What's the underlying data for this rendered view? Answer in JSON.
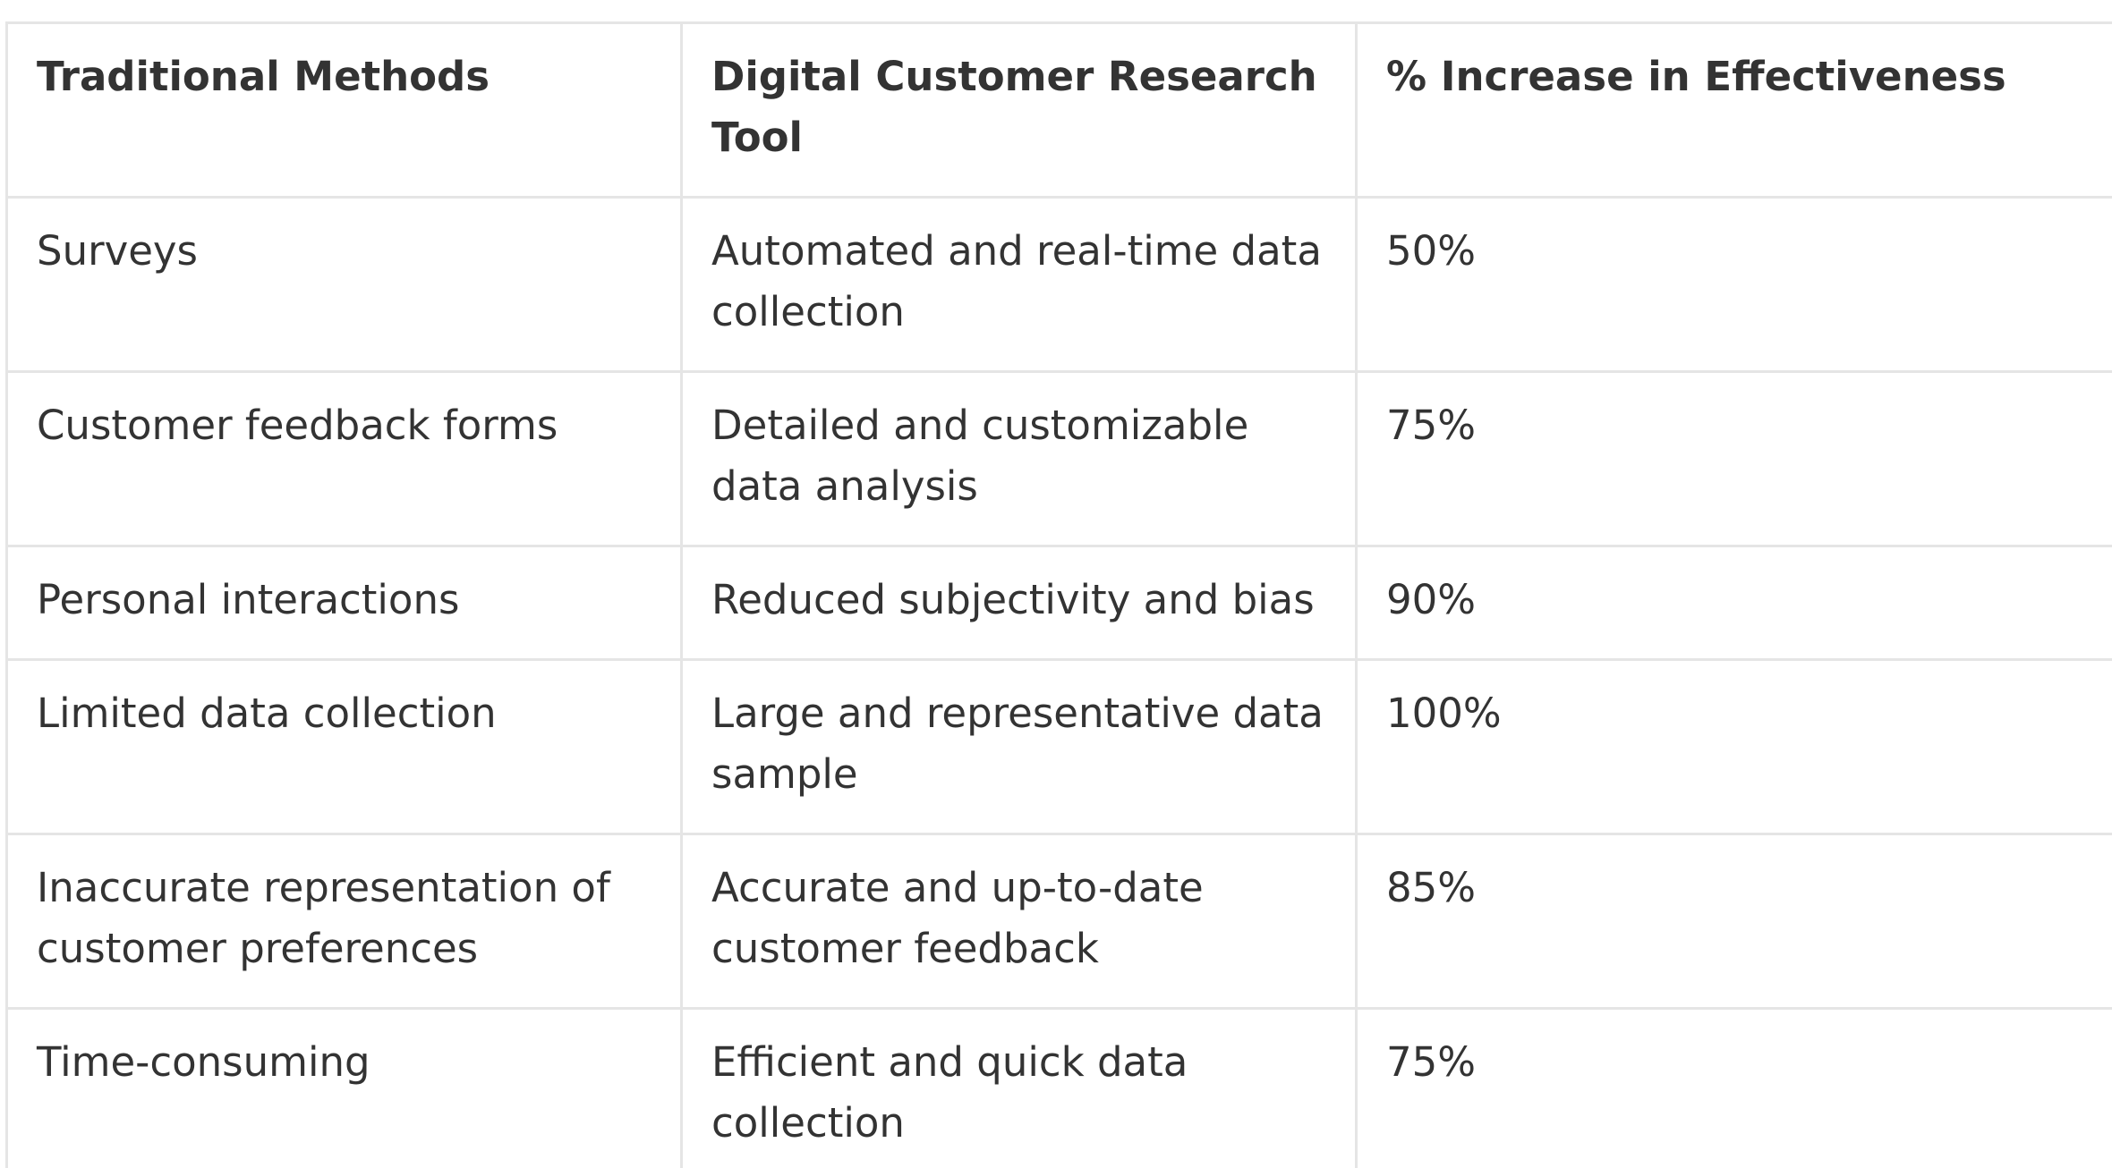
{
  "table": {
    "headers": [
      "Traditional Methods",
      "Digital Customer Research Tool",
      "% Increase in Effectiveness"
    ],
    "rows": [
      [
        "Surveys",
        "Automated and real-time data collection",
        "50%"
      ],
      [
        "Customer feedback forms",
        "Detailed and customizable data analysis",
        "75%"
      ],
      [
        "Personal interactions",
        "Reduced subjectivity and bias",
        "90%"
      ],
      [
        "Limited data collection",
        "Large and representative data sample",
        "100%"
      ],
      [
        "Inaccurate representation of customer preferences",
        "Accurate and up-to-date customer feedback",
        "85%"
      ],
      [
        "Time-consuming",
        "Efficient and quick data collection",
        "75%"
      ]
    ]
  }
}
